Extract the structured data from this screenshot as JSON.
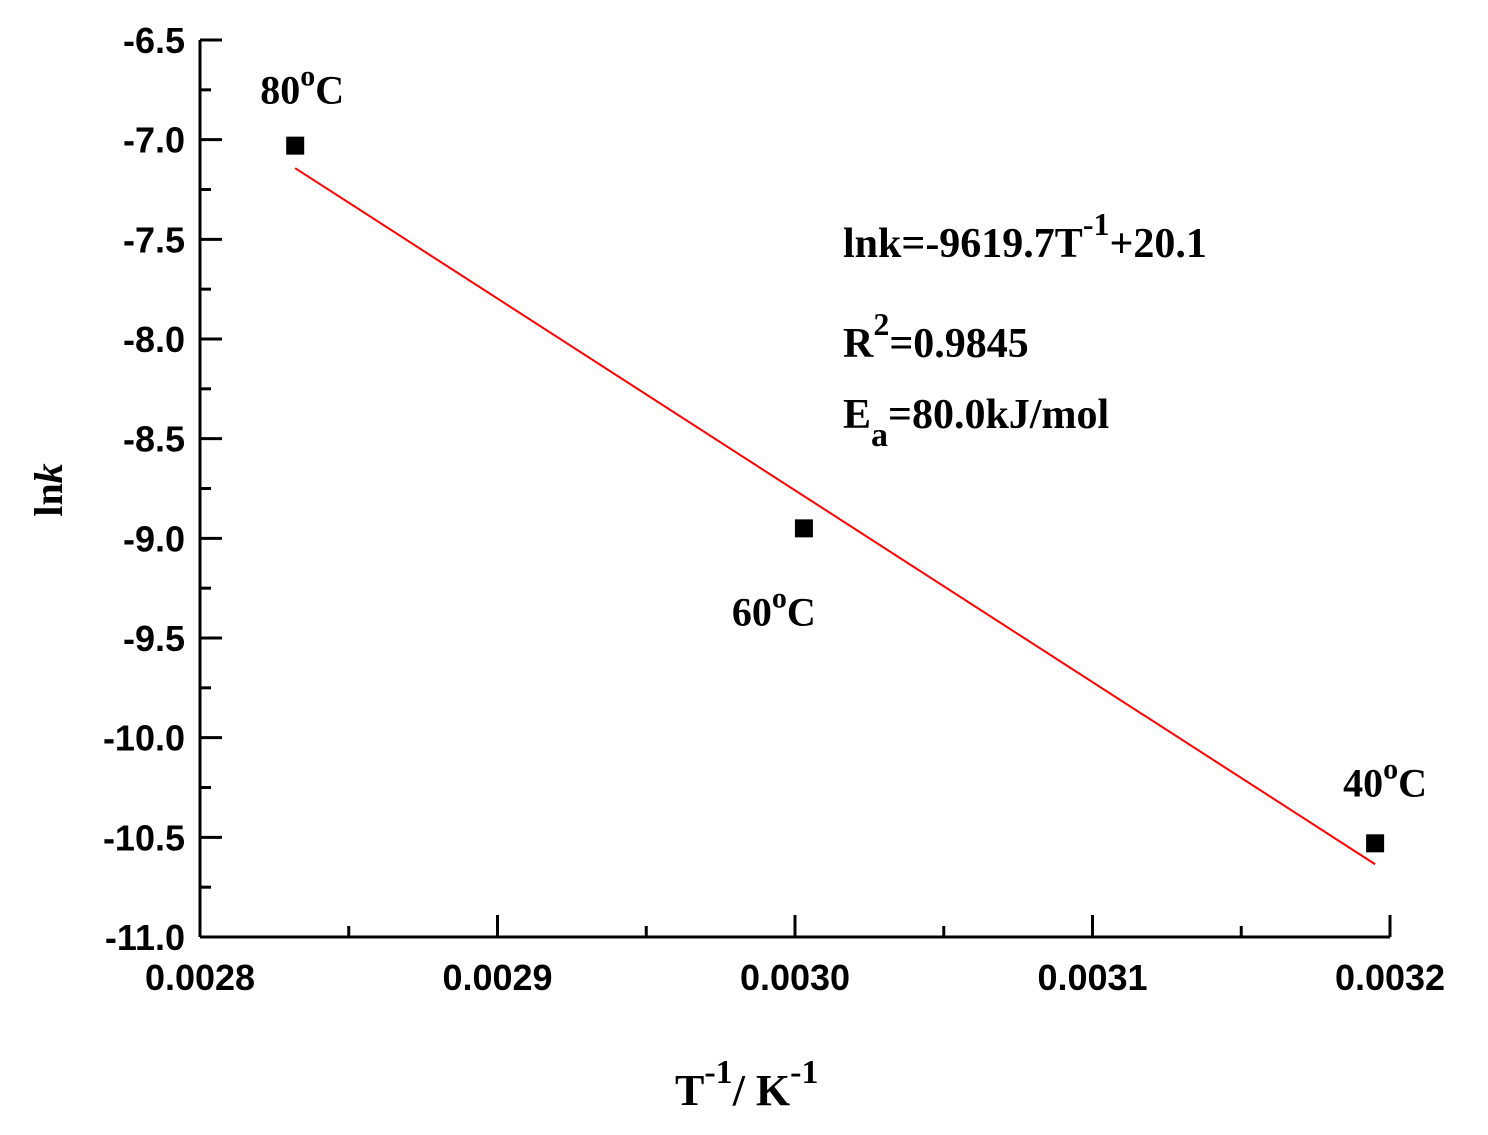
{
  "chart_data": {
    "type": "scatter",
    "xlabel": {
      "base": "T",
      "sup1": "-1",
      "mid": "/ K",
      "sup2": "-1"
    },
    "ylabel": {
      "plain": "ln",
      "italic": "k"
    },
    "xlim": [
      0.0028,
      0.0032
    ],
    "ylim": [
      -11.0,
      -6.5
    ],
    "x_ticks": [
      "0.0028",
      "0.0029",
      "0.0030",
      "0.0031",
      "0.0032"
    ],
    "y_ticks": [
      "-6.5",
      "-7.0",
      "-7.5",
      "-8.0",
      "-8.5",
      "-9.0",
      "-9.5",
      "-10.0",
      "-10.5",
      "-11.0"
    ],
    "points": [
      {
        "x": 0.002832,
        "y": -7.03,
        "label": {
          "num": "80",
          "sup": "o",
          "unit": "C"
        }
      },
      {
        "x": 0.003003,
        "y": -8.95,
        "label": {
          "num": "60",
          "sup": "o",
          "unit": "C"
        }
      },
      {
        "x": 0.003195,
        "y": -10.53,
        "label": {
          "num": "40",
          "sup": "o",
          "unit": "C"
        }
      }
    ],
    "fit": {
      "slope": -9619.7,
      "intercept": 20.1,
      "x_range": [
        0.002832,
        0.003195
      ],
      "color": "#ff0000"
    },
    "marker_color": "#000000",
    "grid": false,
    "annotation": {
      "line1": {
        "a": "lnk=-9619.7T",
        "sup": "-1",
        "b": "+20.1"
      },
      "line2": {
        "a": "R",
        "sup": "2",
        "b": "=0.9845"
      },
      "line3": {
        "a": "E",
        "sub": "a",
        "b": "=80.0kJ/mol"
      }
    }
  }
}
